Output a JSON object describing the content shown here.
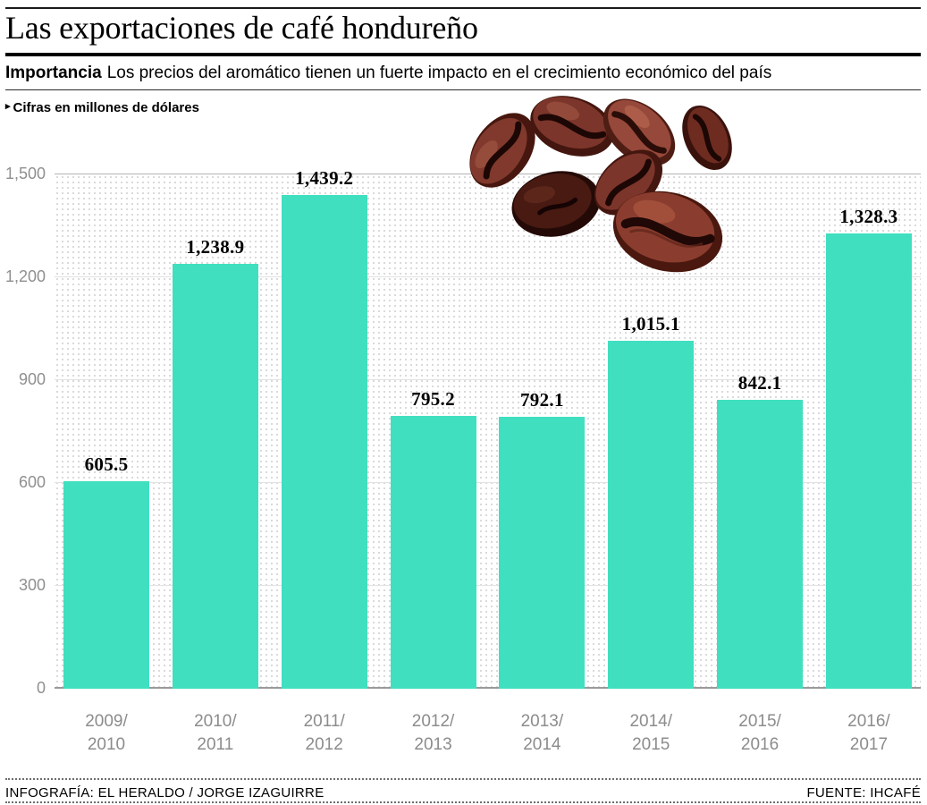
{
  "header": {
    "title": "Las exportaciones de café hondureño",
    "importance_label": "Importancia",
    "importance_text": "Los precios del aromático tienen un fuerte impacto en el crecimiento económico del país",
    "units_note": "Cifras en millones de dólares"
  },
  "icons": {
    "bullet": "▸",
    "beans": "coffee-beans-illustration"
  },
  "chart_data": {
    "type": "bar",
    "title": "Las exportaciones de café hondureño",
    "subtitle": "Los precios del aromático tienen un fuerte impacto en el crecimiento económico del país",
    "units": "Cifras en millones de dólares",
    "categories": [
      "2009/2010",
      "2010/2011",
      "2011/2012",
      "2012/2013",
      "2013/2014",
      "2014/2015",
      "2015/2016",
      "2016/2017"
    ],
    "values": [
      605.5,
      1238.9,
      1439.2,
      795.2,
      792.1,
      1015.1,
      842.1,
      1328.3
    ],
    "value_labels": [
      "605.5",
      "1,238.9",
      "1,439.2",
      "795.2",
      "792.1",
      "1,015.1",
      "842.1",
      "1,328.3"
    ],
    "xlabel": "",
    "ylabel": "Cifras en millones de dólares",
    "ylim": [
      0,
      1500
    ],
    "yticks": [
      0,
      300,
      600,
      900,
      1200,
      1500
    ],
    "ytick_labels": [
      "0",
      "300",
      "600",
      "900",
      "1,200",
      "1,500"
    ],
    "bar_color": "#40dfc0",
    "grid": "dotted-texture-background",
    "legend": "none"
  },
  "footer": {
    "credit": "INFOGRAFÍA: EL HERALDO / JORGE IZAGUIRRE",
    "source": "FUENTE: IHCAFÉ"
  }
}
